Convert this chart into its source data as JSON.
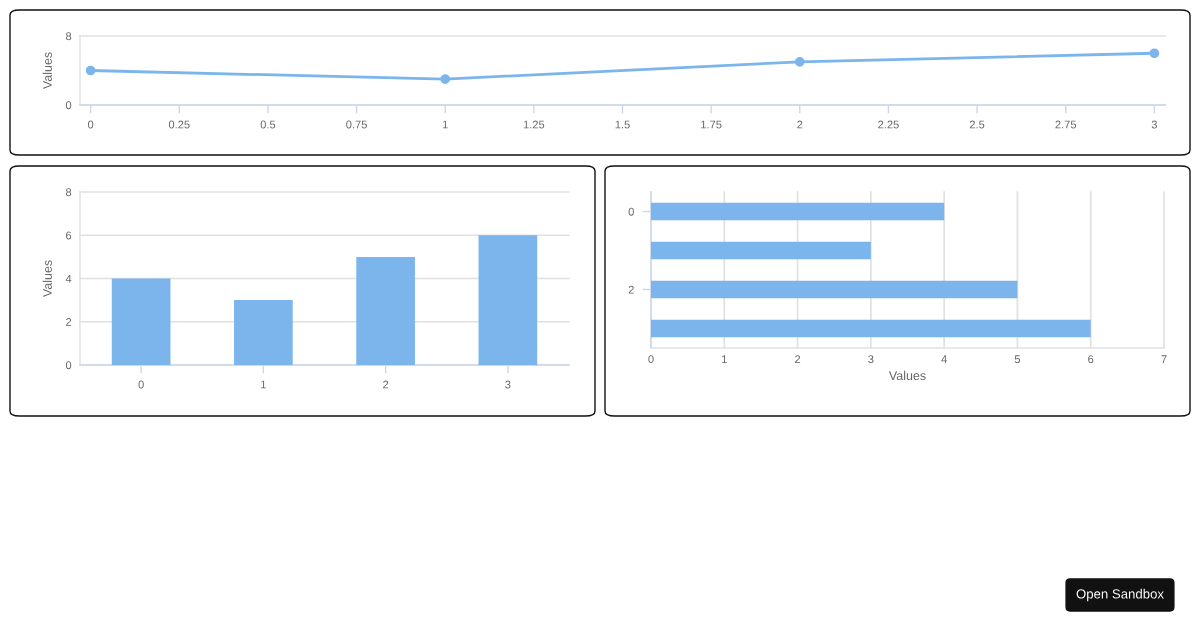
{
  "chart_data": [
    {
      "type": "line",
      "x": [
        0,
        1,
        2,
        3
      ],
      "values": [
        4,
        3,
        5,
        6
      ],
      "color": "#7cb5ec",
      "xlim": [
        -0.03,
        3.03
      ],
      "xticks": [
        0,
        0.25,
        0.5,
        0.75,
        1,
        1.25,
        1.5,
        1.75,
        2,
        2.25,
        2.5,
        2.75,
        3
      ],
      "ylim": [
        0,
        8
      ],
      "yticks": [
        0,
        8
      ],
      "ylabel": "Values",
      "grid": "y",
      "marker": "circle",
      "line_style": "solid"
    },
    {
      "type": "bar",
      "categories": [
        "0",
        "1",
        "2",
        "3"
      ],
      "values": [
        4,
        3,
        5,
        6
      ],
      "color": "#7cb5ec",
      "ylim": [
        0,
        8
      ],
      "yticks": [
        0,
        2,
        4,
        6,
        8
      ],
      "ylabel": "Values",
      "grid": "y"
    },
    {
      "type": "bar",
      "orientation": "horizontal",
      "categories": [
        "0",
        null,
        "2",
        null
      ],
      "values": [
        4,
        3,
        5,
        6
      ],
      "color": "#7cb5ec",
      "xlim": [
        0,
        7
      ],
      "xticks": [
        0,
        1,
        2,
        3,
        4,
        5,
        6,
        7
      ],
      "xlabel": "Values",
      "grid": "x",
      "annotations": [
        "Open Sandbox"
      ]
    }
  ]
}
